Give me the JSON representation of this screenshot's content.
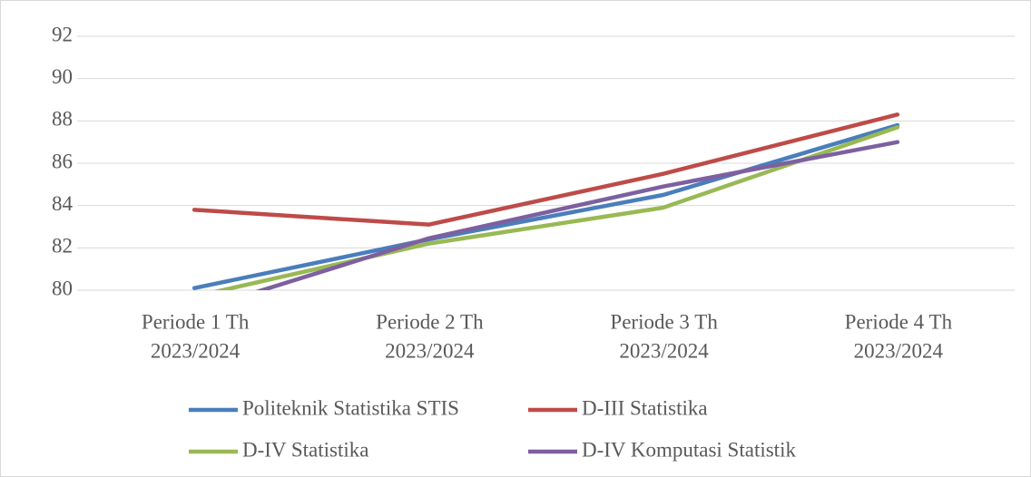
{
  "chart_data": {
    "type": "line",
    "categories": [
      [
        "Periode 1 Th",
        "2023/2024"
      ],
      [
        "Periode 2 Th",
        "2023/2024"
      ],
      [
        "Periode 3 Th",
        "2023/2024"
      ],
      [
        "Periode 4 Th",
        "2023/2024"
      ]
    ],
    "series": [
      {
        "name": "Politeknik Statistika STIS",
        "color": "#4a7ebb",
        "values": [
          80.1,
          82.4,
          84.5,
          87.8
        ]
      },
      {
        "name": "D-III Statistika",
        "color": "#be4b48",
        "values": [
          83.8,
          83.1,
          85.5,
          88.3
        ]
      },
      {
        "name": "D-IV Statistika",
        "color": "#98b954",
        "values": [
          79.7,
          82.2,
          83.9,
          87.7
        ]
      },
      {
        "name": "D-IV Komputasi Statistik",
        "color": "#7d60a0",
        "values": [
          79.0,
          82.45,
          84.9,
          87.0
        ]
      }
    ],
    "ylim": [
      80,
      92
    ],
    "yticks": [
      80,
      82,
      84,
      86,
      88,
      90,
      92
    ],
    "grid": true,
    "legend": "bottom"
  }
}
